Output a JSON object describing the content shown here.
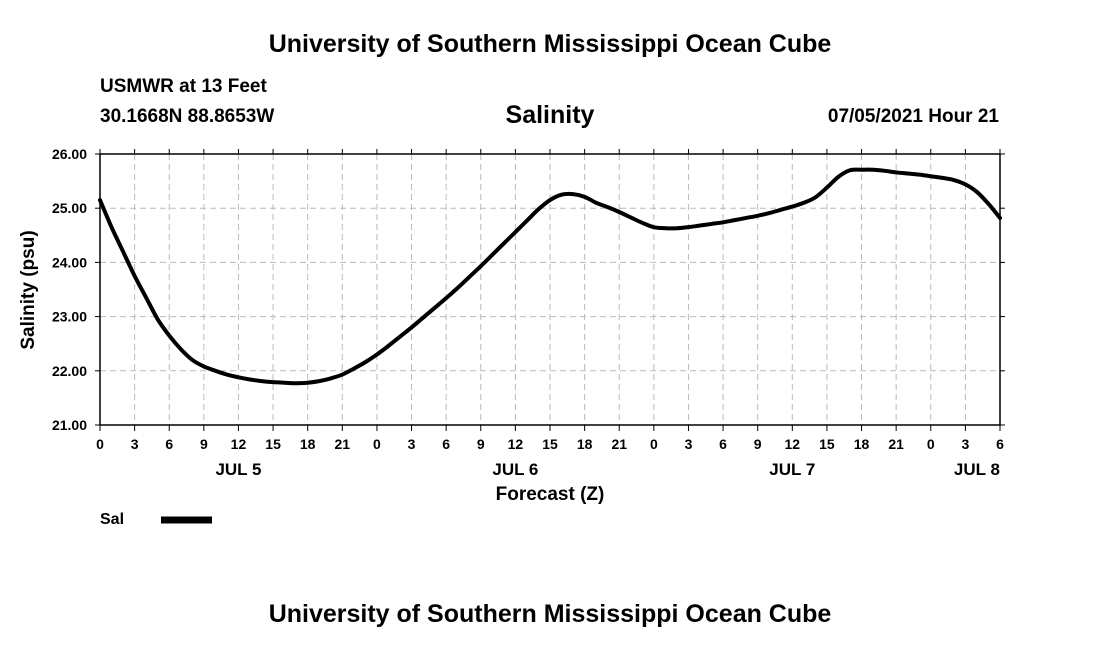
{
  "header": {
    "title": "University of Southern Mississippi Ocean Cube",
    "station": "USMWR at 13 Feet",
    "coords": "30.1668N  88.8653W",
    "timestamp": "07/05/2021 Hour 21"
  },
  "footer": {
    "title": "University of Southern Mississippi Ocean Cube"
  },
  "chart_data": {
    "type": "line",
    "title": "Salinity",
    "xlabel": "Forecast (Z)",
    "ylabel": "Salinity (psu)",
    "ylim": [
      21.0,
      26.0
    ],
    "xlim_hours": [
      0,
      78
    ],
    "grid": true,
    "y_ticks": [
      "21.00",
      "22.00",
      "23.00",
      "24.00",
      "25.00",
      "26.00"
    ],
    "x_ticks": [
      {
        "hour": 0,
        "label": "0"
      },
      {
        "hour": 3,
        "label": "3"
      },
      {
        "hour": 6,
        "label": "6"
      },
      {
        "hour": 9,
        "label": "9"
      },
      {
        "hour": 12,
        "label": "12"
      },
      {
        "hour": 15,
        "label": "15"
      },
      {
        "hour": 18,
        "label": "18"
      },
      {
        "hour": 21,
        "label": "21"
      },
      {
        "hour": 24,
        "label": "0"
      },
      {
        "hour": 27,
        "label": "3"
      },
      {
        "hour": 30,
        "label": "6"
      },
      {
        "hour": 33,
        "label": "9"
      },
      {
        "hour": 36,
        "label": "12"
      },
      {
        "hour": 39,
        "label": "15"
      },
      {
        "hour": 42,
        "label": "18"
      },
      {
        "hour": 45,
        "label": "21"
      },
      {
        "hour": 48,
        "label": "0"
      },
      {
        "hour": 51,
        "label": "3"
      },
      {
        "hour": 54,
        "label": "6"
      },
      {
        "hour": 57,
        "label": "9"
      },
      {
        "hour": 60,
        "label": "12"
      },
      {
        "hour": 63,
        "label": "15"
      },
      {
        "hour": 66,
        "label": "18"
      },
      {
        "hour": 69,
        "label": "21"
      },
      {
        "hour": 72,
        "label": "0"
      },
      {
        "hour": 75,
        "label": "3"
      },
      {
        "hour": 78,
        "label": "6"
      }
    ],
    "day_labels": [
      {
        "hour": 12,
        "label": "JUL 5"
      },
      {
        "hour": 36,
        "label": "JUL 6"
      },
      {
        "hour": 60,
        "label": "JUL 7"
      },
      {
        "hour": 76,
        "label": "JUL 8"
      }
    ],
    "series": [
      {
        "name": "Sal",
        "color": "#000000",
        "x": [
          0,
          1,
          2,
          3,
          4,
          5,
          6,
          7,
          8,
          9,
          10,
          11,
          12,
          13,
          14,
          15,
          16,
          17,
          18,
          19,
          20,
          21,
          22,
          23,
          24,
          25,
          26,
          27,
          28,
          29,
          30,
          31,
          32,
          33,
          34,
          35,
          36,
          37,
          38,
          39,
          40,
          41,
          42,
          43,
          44,
          45,
          46,
          47,
          48,
          49,
          50,
          51,
          52,
          53,
          54,
          55,
          56,
          57,
          58,
          59,
          60,
          61,
          62,
          63,
          64,
          65,
          66,
          67,
          68,
          69,
          70,
          71,
          72,
          73,
          74,
          75,
          76,
          77,
          78
        ],
        "values": [
          25.15,
          24.65,
          24.2,
          23.75,
          23.35,
          22.95,
          22.65,
          22.4,
          22.2,
          22.08,
          22.0,
          21.93,
          21.88,
          21.84,
          21.81,
          21.79,
          21.78,
          21.77,
          21.78,
          21.81,
          21.86,
          21.93,
          22.04,
          22.16,
          22.3,
          22.46,
          22.63,
          22.8,
          22.98,
          23.16,
          23.34,
          23.53,
          23.73,
          23.93,
          24.14,
          24.35,
          24.56,
          24.77,
          24.98,
          25.15,
          25.25,
          25.26,
          25.21,
          25.1,
          25.02,
          24.93,
          24.83,
          24.73,
          24.65,
          24.63,
          24.63,
          24.65,
          24.68,
          24.71,
          24.74,
          24.78,
          24.82,
          24.86,
          24.91,
          24.97,
          25.03,
          25.1,
          25.2,
          25.38,
          25.58,
          25.7,
          25.71,
          25.71,
          25.69,
          25.66,
          25.64,
          25.62,
          25.59,
          25.56,
          25.52,
          25.44,
          25.3,
          25.08,
          24.82
        ]
      }
    ],
    "legend": {
      "position": "bottom-left",
      "label": "Sal"
    }
  }
}
